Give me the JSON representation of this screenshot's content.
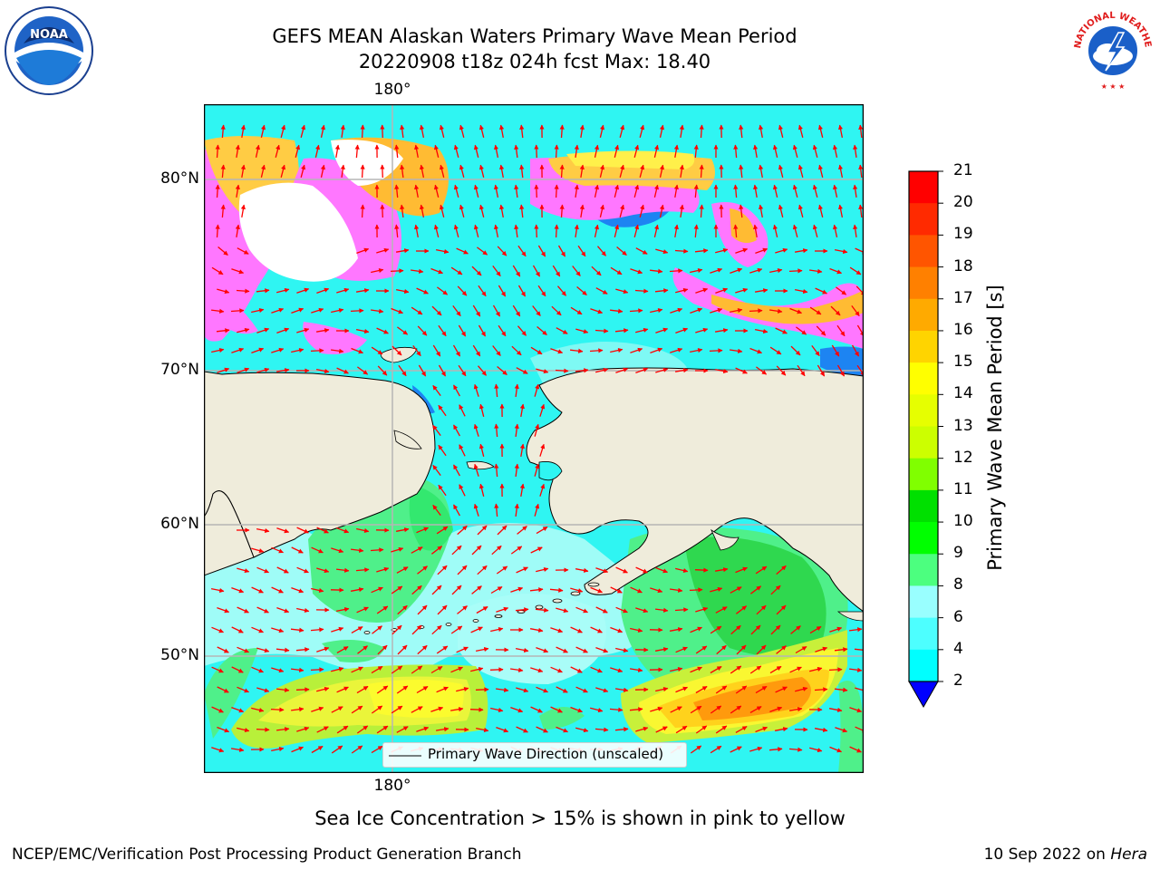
{
  "title": {
    "line1": "GEFS MEAN Alaskan Waters Primary Wave Mean Period",
    "line2": "20220908 t18z 024h fcst   Max: 18.40"
  },
  "map": {
    "lon_label_top": "180°",
    "lon_label_bottom": "180°",
    "lat_labels": [
      "80°N",
      "70°N",
      "60°N",
      "50°N"
    ],
    "legend_label": "Primary Wave Direction (unscaled)",
    "arrow_color": "#ff0000",
    "land_color": "#efecdb",
    "ice_note": "Sea Ice Concentration > 15% is shown in pink to yellow"
  },
  "colorbar": {
    "title": "Primary Wave Mean Period [s]",
    "ticks": [
      "21",
      "20",
      "19",
      "18",
      "17",
      "16",
      "15",
      "14",
      "13",
      "12",
      "11",
      "10",
      "9",
      "8",
      "6",
      "4",
      "2"
    ],
    "colors": [
      "#ff0000",
      "#ff2a00",
      "#ff5500",
      "#ff8000",
      "#ffaa00",
      "#ffd400",
      "#ffff00",
      "#e6ff00",
      "#ccff00",
      "#80ff00",
      "#00e000",
      "#00ff00",
      "#4cff7f",
      "#99ffff",
      "#4dffff",
      "#00ffff",
      "#007fff"
    ],
    "extend_color": "#0000ff"
  },
  "logos": {
    "left_icon": "noaa-logo-icon",
    "right_icon": "nws-logo-icon",
    "left_text": "NOAA",
    "right_text": "NATIONAL WEATHER SERVICE"
  },
  "footer": {
    "left": "NCEP/EMC/Verification Post Processing Product Generation Branch",
    "right_date": "10 Sep 2022 on",
    "right_host": "Hera"
  }
}
